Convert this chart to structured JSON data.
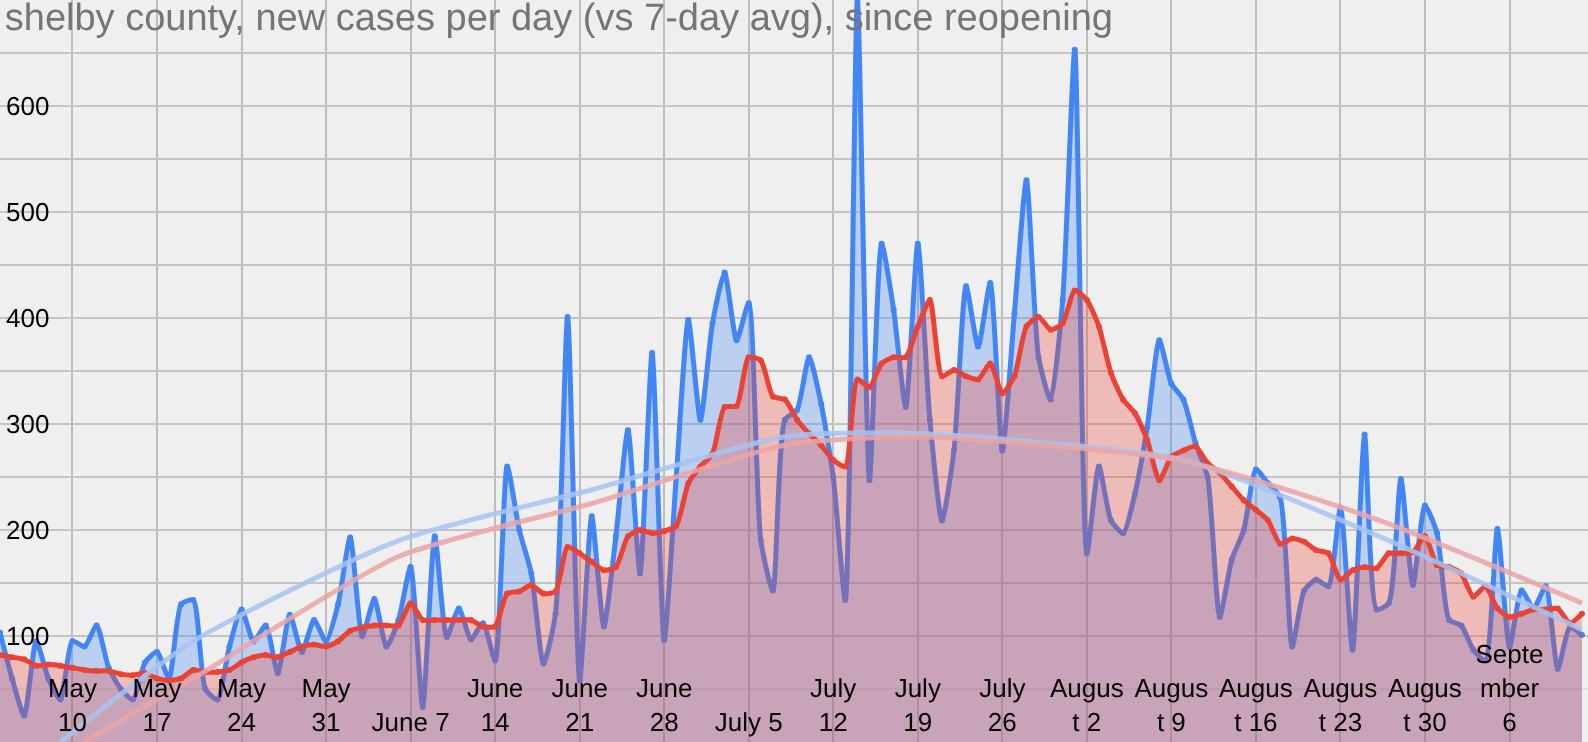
{
  "chart_data": {
    "type": "area",
    "title": "shelby county, new cases per day (vs 7-day avg), since reopening",
    "x": [
      "--05-04",
      "--05-05",
      "--05-06",
      "--05-07",
      "--05-08",
      "--05-09",
      "--05-10",
      "--05-11",
      "--05-12",
      "--05-13",
      "--05-14",
      "--05-15",
      "--05-16",
      "--05-17",
      "--05-18",
      "--05-19",
      "--05-20",
      "--05-21",
      "--05-22",
      "--05-23",
      "--05-24",
      "--05-25",
      "--05-26",
      "--05-27",
      "--05-28",
      "--05-29",
      "--05-30",
      "--05-31",
      "--06-01",
      "--06-02",
      "--06-03",
      "--06-04",
      "--06-05",
      "--06-06",
      "--06-07",
      "--06-08",
      "--06-09",
      "--06-10",
      "--06-11",
      "--06-12",
      "--06-13",
      "--06-14",
      "--06-15",
      "--06-16",
      "--06-17",
      "--06-18",
      "--06-19",
      "--06-20",
      "--06-21",
      "--06-22",
      "--06-23",
      "--06-24",
      "--06-25",
      "--06-26",
      "--06-27",
      "--06-28",
      "--06-29",
      "--06-30",
      "--07-01",
      "--07-02",
      "--07-03",
      "--07-04",
      "--07-05",
      "--07-06",
      "--07-07",
      "--07-08",
      "--07-09",
      "--07-10",
      "--07-11",
      "--07-12",
      "--07-13",
      "--07-14",
      "--07-15",
      "--07-16",
      "--07-17",
      "--07-18",
      "--07-19",
      "--07-20",
      "--07-21",
      "--07-22",
      "--07-23",
      "--07-24",
      "--07-25",
      "--07-26",
      "--07-27",
      "--07-28",
      "--07-29",
      "--07-30",
      "--07-31",
      "--08-01",
      "--08-02",
      "--08-03",
      "--08-04",
      "--08-05",
      "--08-06",
      "--08-07",
      "--08-08",
      "--08-09",
      "--08-10",
      "--08-11",
      "--08-12",
      "--08-13",
      "--08-14",
      "--08-15",
      "--08-16",
      "--08-17",
      "--08-18",
      "--08-19",
      "--08-20",
      "--08-21",
      "--08-22",
      "--08-23",
      "--08-24",
      "--08-25",
      "--08-26",
      "--08-27",
      "--08-28",
      "--08-29",
      "--08-30",
      "--08-31",
      "--09-01",
      "--09-02",
      "--09-03",
      "--09-04",
      "--09-05",
      "--09-06",
      "--09-07",
      "--09-08",
      "--09-09",
      "--09-10",
      "--09-11",
      "--09-12"
    ],
    "series": [
      {
        "color": "#4285f4",
        "marker": "circle",
        "values": [
          103,
          60,
          25,
          95,
          60,
          40,
          95,
          90,
          110,
          70,
          50,
          40,
          75,
          85,
          60,
          130,
          134,
          50,
          40,
          90,
          125,
          95,
          110,
          65,
          120,
          85,
          115,
          95,
          130,
          193,
          100,
          135,
          90,
          115,
          165,
          33,
          194,
          99,
          126,
          97,
          112,
          77,
          260,
          200,
          159,
          74,
          121,
          401,
          58,
          213,
          109,
          194,
          294,
          159,
          367,
          96,
          250,
          398,
          304,
          395,
          443,
          379,
          414,
          190,
          143,
          304,
          313,
          363,
          319,
          250,
          134,
          700,
          247,
          470,
          408,
          316,
          470,
          304,
          209,
          275,
          430,
          373,
          433,
          275,
          404,
          530,
          363,
          323,
          417,
          653,
          178,
          260,
          209,
          197,
          235,
          297,
          379,
          338,
          323,
          282,
          250,
          118,
          172,
          200,
          257,
          244,
          231,
          90,
          143,
          153,
          147,
          221,
          87,
          290,
          125,
          131,
          248,
          148,
          223,
          197,
          115,
          110,
          87,
          77,
          201,
          90,
          143,
          126,
          147,
          69,
          108,
          101
        ]
      },
      {
        "color": "#ea4335",
        "marker": "circle",
        "values": [
          82,
          80,
          78,
          72,
          73,
          72,
          70,
          68,
          67,
          67,
          64,
          63,
          65,
          60,
          58,
          60,
          68,
          66,
          66,
          68,
          75,
          80,
          82,
          80,
          85,
          90,
          92,
          90,
          95,
          105,
          108,
          110,
          110,
          110,
          131,
          115,
          115,
          115,
          115,
          115,
          109,
          109,
          140,
          142,
          148,
          140,
          142,
          184,
          178,
          170,
          162,
          165,
          194,
          200,
          197,
          199,
          204,
          244,
          260,
          272,
          316,
          317,
          363,
          360,
          326,
          323,
          304,
          291,
          280,
          266,
          260,
          342,
          335,
          357,
          363,
          363,
          392,
          417,
          345,
          351,
          345,
          342,
          357,
          329,
          345,
          392,
          401,
          389,
          395,
          426,
          417,
          392,
          348,
          323,
          310,
          285,
          247,
          269,
          275,
          279,
          263,
          254,
          241,
          228,
          219,
          209,
          187,
          192,
          189,
          181,
          178,
          153,
          162,
          165,
          164,
          178,
          178,
          179,
          194,
          167,
          165,
          159,
          137,
          147,
          126,
          118,
          121,
          125,
          125,
          126,
          112,
          121
        ]
      },
      {
        "type": "line",
        "color": "#a8c4f2",
        "marker": "none",
        "x": [
          "--05-09",
          "--05-20",
          "--06-06",
          "--06-22",
          "--07-08",
          "--07-19",
          "--08-10",
          "--08-26",
          "--09-12"
        ],
        "values": [
          0,
          95,
          190,
          238,
          288,
          291,
          266,
          195,
          106
        ]
      },
      {
        "type": "line",
        "color": "#eca5a5",
        "marker": "none",
        "x": [
          "--05-11",
          "--05-20",
          "--06-06",
          "--06-22",
          "--07-08",
          "--07-19",
          "--08-10",
          "--08-26",
          "--09-12"
        ],
        "values": [
          0,
          60,
          175,
          225,
          280,
          288,
          265,
          210,
          131
        ]
      }
    ],
    "xlim": [
      "--05-04",
      "--09-12T12:00"
    ],
    "xticks": [
      {
        "value": "--05-10",
        "label": "May\n10"
      },
      {
        "value": "--05-17",
        "label": "May\n17"
      },
      {
        "value": "--05-24",
        "label": "May\n24"
      },
      {
        "value": "--05-31",
        "label": "May\n31"
      },
      {
        "value": "--06-07",
        "label": "June 7"
      },
      {
        "value": "--06-14",
        "label": "June\n14"
      },
      {
        "value": "--06-21",
        "label": "June\n21"
      },
      {
        "value": "--06-28",
        "label": "June\n28"
      },
      {
        "value": "--07-05",
        "label": "July 5"
      },
      {
        "value": "--07-12",
        "label": "July\n12"
      },
      {
        "value": "--07-19",
        "label": "July\n19"
      },
      {
        "value": "--07-26",
        "label": "July\n26"
      },
      {
        "value": "--08-02",
        "label": "Augus\nt 2"
      },
      {
        "value": "--08-09",
        "label": "Augus\nt 9"
      },
      {
        "value": "--08-16",
        "label": "Augus\nt 16"
      },
      {
        "value": "--08-23",
        "label": "Augus\nt 23"
      },
      {
        "value": "--08-30",
        "label": "Augus\nt 30"
      },
      {
        "value": "--09-06",
        "label": "Septe\nmber\n6"
      }
    ],
    "ylim": [
      0,
      700
    ],
    "yticks": [
      {
        "value": 50,
        "label": null
      },
      100,
      {
        "value": 150,
        "label": null
      },
      200,
      {
        "value": 250,
        "label": null
      },
      300,
      {
        "value": 350,
        "label": null
      },
      400,
      {
        "value": 450,
        "label": null
      },
      500,
      {
        "value": 550,
        "label": null
      },
      600,
      {
        "value": 650,
        "label": null
      }
    ],
    "grid": true
  }
}
